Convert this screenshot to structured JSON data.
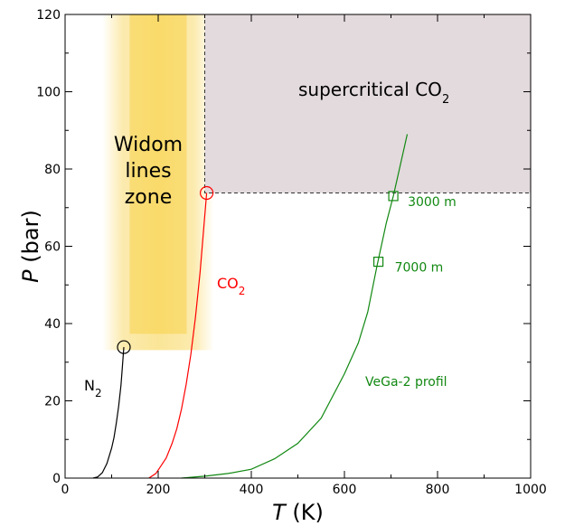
{
  "chart_data": {
    "type": "line",
    "xlabel": {
      "var": "T",
      "unit": " (K)"
    },
    "ylabel": {
      "var": "P",
      "unit": " (bar)"
    },
    "xlim": [
      0,
      1000
    ],
    "ylim": [
      0,
      120
    ],
    "x_ticks": [
      0,
      200,
      400,
      600,
      800,
      1000
    ],
    "y_ticks": [
      0,
      20,
      40,
      60,
      80,
      100,
      120
    ],
    "grid": false,
    "regions": {
      "widom": {
        "label_lines": [
          "Widom",
          "lines",
          "zone"
        ],
        "x_range": [
          100,
          300
        ],
        "y_range": [
          35,
          120
        ],
        "color": "#f5c518"
      },
      "supercritical": {
        "label": "supercritical CO",
        "label_sub": "2",
        "x_range": [
          300,
          1000
        ],
        "y_range": [
          73.8,
          120
        ],
        "color": "#e3dadd"
      }
    },
    "series": [
      {
        "name": "N",
        "name_sub": "2",
        "color": "#000000",
        "x": [
          60,
          70,
          80,
          90,
          100,
          105,
          110,
          115,
          120,
          122,
          126.2
        ],
        "y": [
          0,
          0.3,
          1.4,
          3.8,
          7.8,
          10.5,
          14.3,
          18.5,
          24,
          27,
          33.9
        ],
        "critical_point": {
          "x": 126.2,
          "y": 33.9
        }
      },
      {
        "name": "CO",
        "name_sub": "2",
        "color": "#ff0000",
        "x": [
          180,
          195,
          205,
          217,
          230,
          240,
          250,
          260,
          270,
          280,
          290,
          304.1
        ],
        "y": [
          0,
          1.2,
          3,
          5.2,
          9,
          12.8,
          17.9,
          24.2,
          32,
          41.6,
          53.2,
          73.8
        ],
        "critical_point": {
          "x": 304.1,
          "y": 73.8
        }
      },
      {
        "name": "VeGa-2 profil",
        "color": "#118811",
        "x": [
          250,
          300,
          350,
          400,
          450,
          500,
          550,
          600,
          630,
          650,
          670,
          690,
          705,
          720,
          735
        ],
        "y": [
          0,
          0.5,
          1.2,
          2.3,
          5,
          9,
          15.5,
          27,
          35,
          43,
          55,
          66,
          73,
          81,
          89
        ],
        "markers": [
          {
            "x": 705,
            "y": 73,
            "label": "3000 m"
          },
          {
            "x": 673,
            "y": 56,
            "label": "7000 m"
          }
        ]
      }
    ]
  }
}
